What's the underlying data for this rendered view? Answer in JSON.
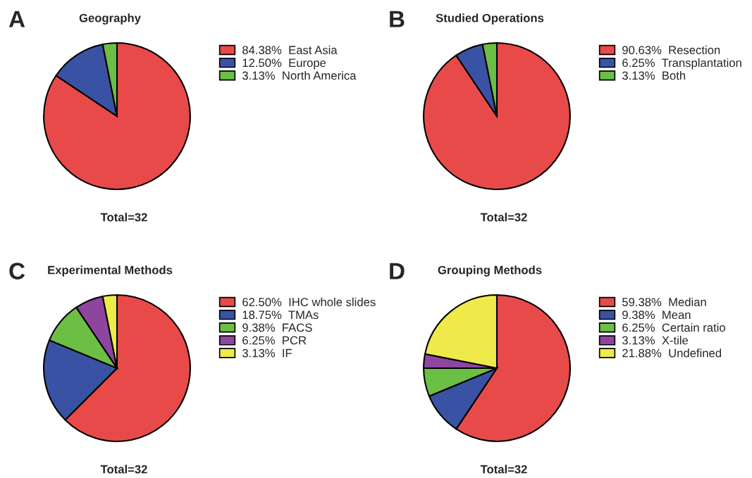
{
  "chart_data": [
    {
      "type": "pie",
      "title": "Geography",
      "annotations": [
        "A",
        "Total=32"
      ],
      "categories": [
        "East Asia",
        "Europe",
        "North America"
      ],
      "values": [
        84.38,
        12.5,
        3.13
      ],
      "value_labels": [
        "84.38%",
        "12.50%",
        "3.13%"
      ],
      "colors": [
        "#e84a4a",
        "#3a52a3",
        "#6cbf45"
      ],
      "legend": "right"
    },
    {
      "type": "pie",
      "title": "Studied Operations",
      "annotations": [
        "B",
        "Total=32"
      ],
      "categories": [
        "Resection",
        "Transplantation",
        "Both"
      ],
      "values": [
        90.63,
        6.25,
        3.13
      ],
      "value_labels": [
        "90.63%",
        "6.25%",
        "3.13%"
      ],
      "colors": [
        "#e84a4a",
        "#3a52a3",
        "#6cbf45"
      ],
      "legend": "right"
    },
    {
      "type": "pie",
      "title": "Experimental Methods",
      "annotations": [
        "C",
        "Total=32"
      ],
      "categories": [
        "IHC whole slides",
        "TMAs",
        "FACS",
        "PCR",
        "IF"
      ],
      "values": [
        62.5,
        18.75,
        9.38,
        6.25,
        3.13
      ],
      "value_labels": [
        "62.50%",
        "18.75%",
        "9.38%",
        "6.25%",
        "3.13%"
      ],
      "colors": [
        "#e84a4a",
        "#3a52a3",
        "#6cbf45",
        "#8e45a0",
        "#eeea4a"
      ],
      "legend": "right"
    },
    {
      "type": "pie",
      "title": "Grouping Methods",
      "annotations": [
        "D",
        "Total=32"
      ],
      "categories": [
        "Median",
        "Mean",
        "Certain ratio",
        "X-tile",
        "Undefined"
      ],
      "values": [
        59.38,
        9.38,
        6.25,
        3.13,
        21.88
      ],
      "value_labels": [
        "59.38%",
        "9.38%",
        "6.25%",
        "3.13%",
        "21.88%"
      ],
      "colors": [
        "#e84a4a",
        "#3a52a3",
        "#6cbf45",
        "#8e45a0",
        "#eeea4a"
      ],
      "legend": "right"
    }
  ]
}
